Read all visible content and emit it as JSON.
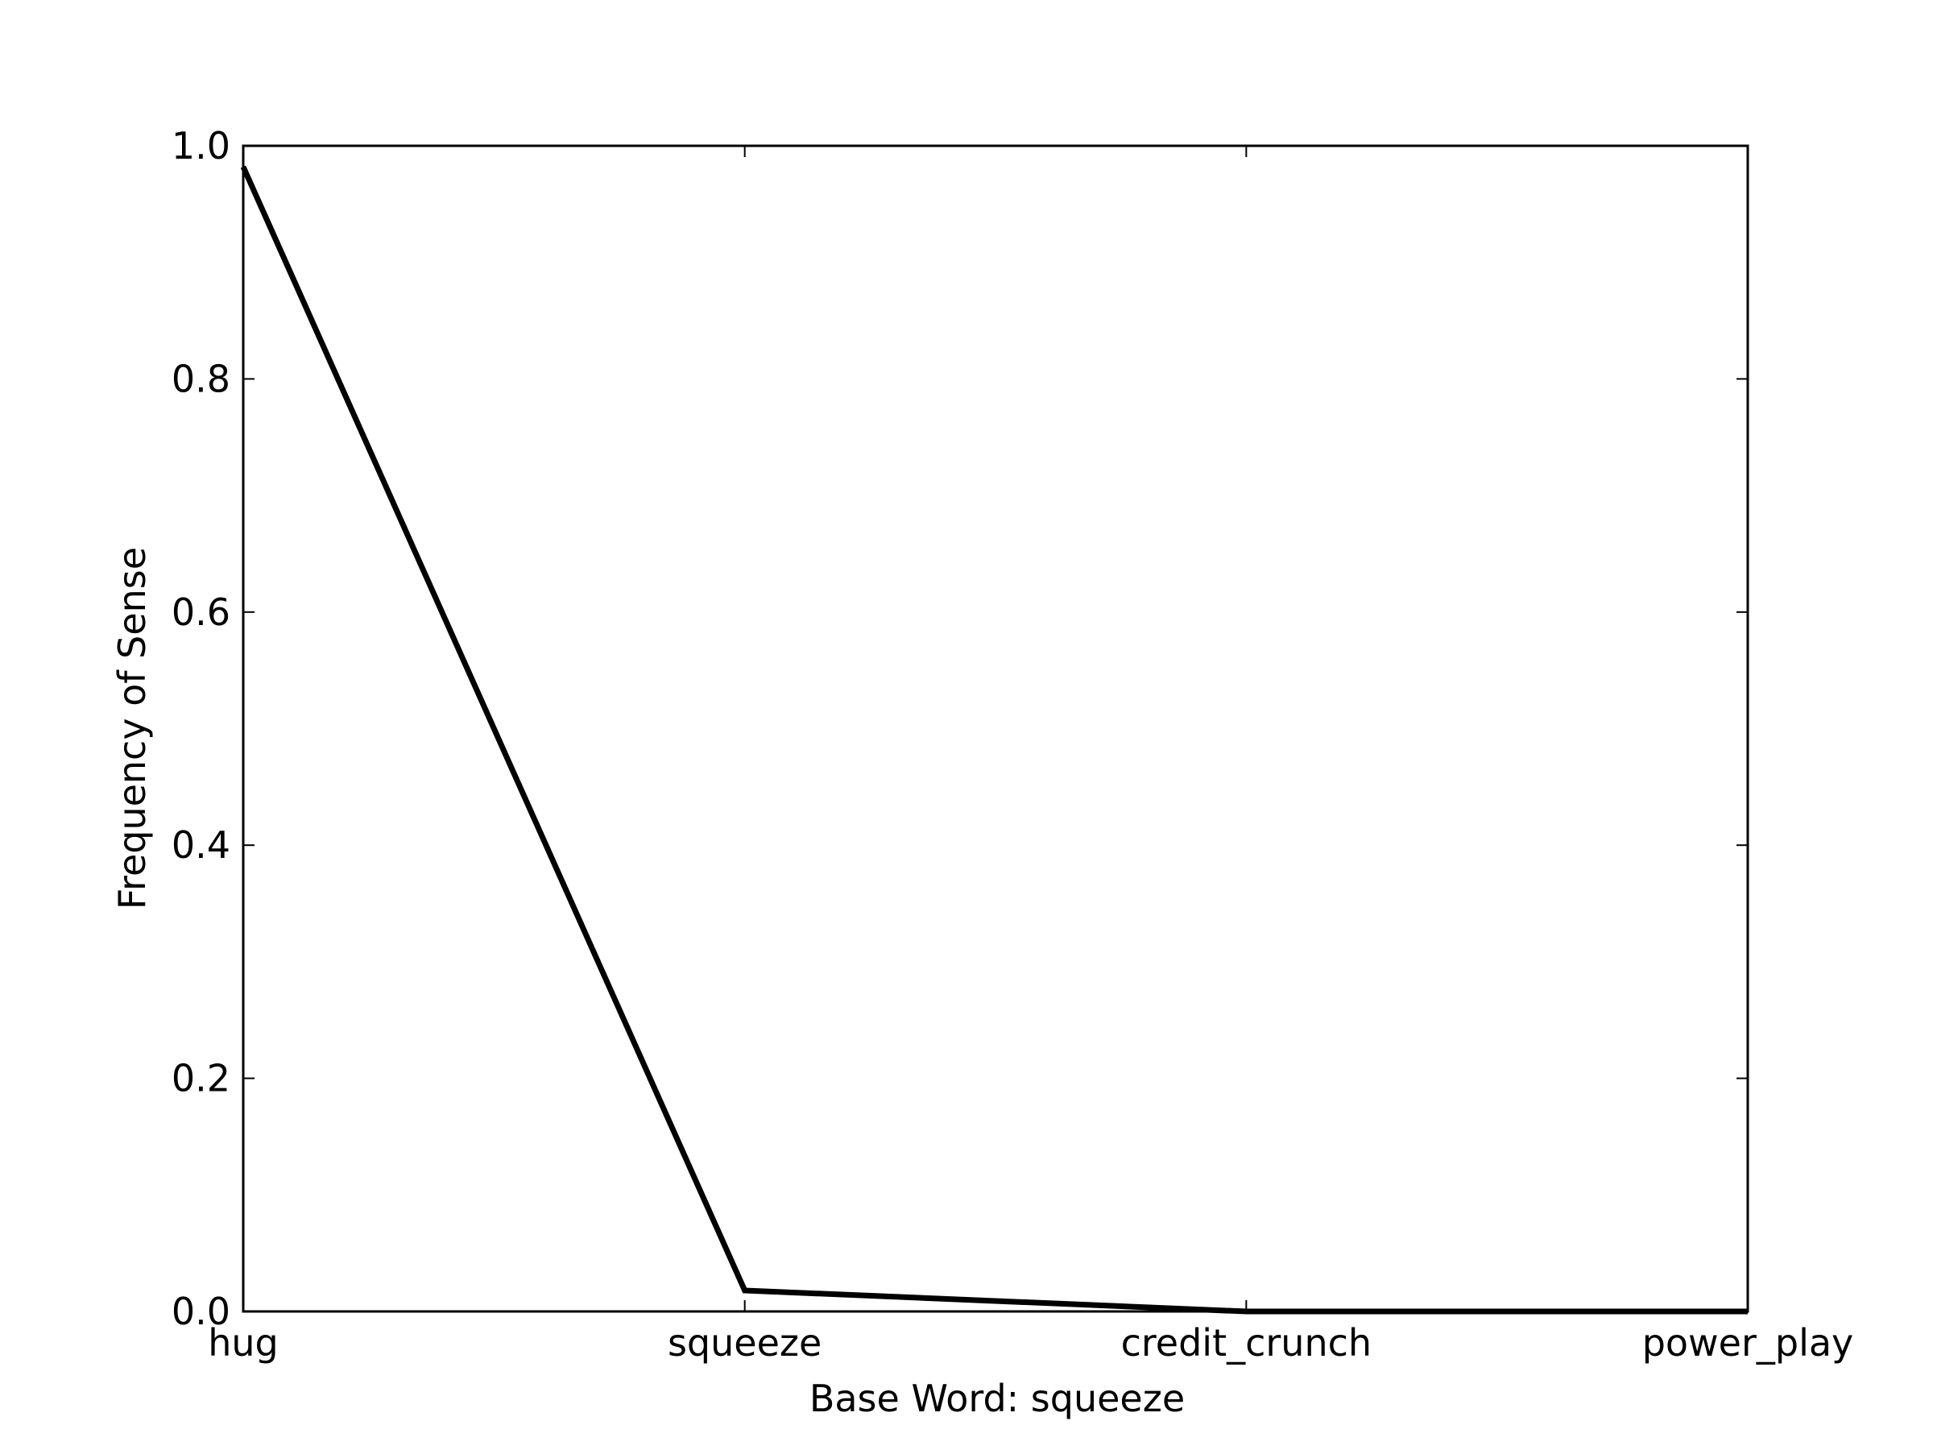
{
  "chart_data": {
    "type": "line",
    "title": "",
    "xlabel": "Base Word: squeeze",
    "ylabel": "Frequency of Sense",
    "categories": [
      "hug",
      "squeeze",
      "credit_crunch",
      "power_play"
    ],
    "series": [
      {
        "values": [
          0.982,
          0.018,
          0.0,
          0.0
        ],
        "color": "#000000"
      }
    ],
    "ylim": [
      0.0,
      1.0
    ],
    "yticks": [
      0.0,
      0.2,
      0.4,
      0.6,
      0.8,
      1.0
    ],
    "ytick_labels": [
      "0.0",
      "0.2",
      "0.4",
      "0.6",
      "0.8",
      "1.0"
    ],
    "grid": false,
    "legend": "none"
  }
}
